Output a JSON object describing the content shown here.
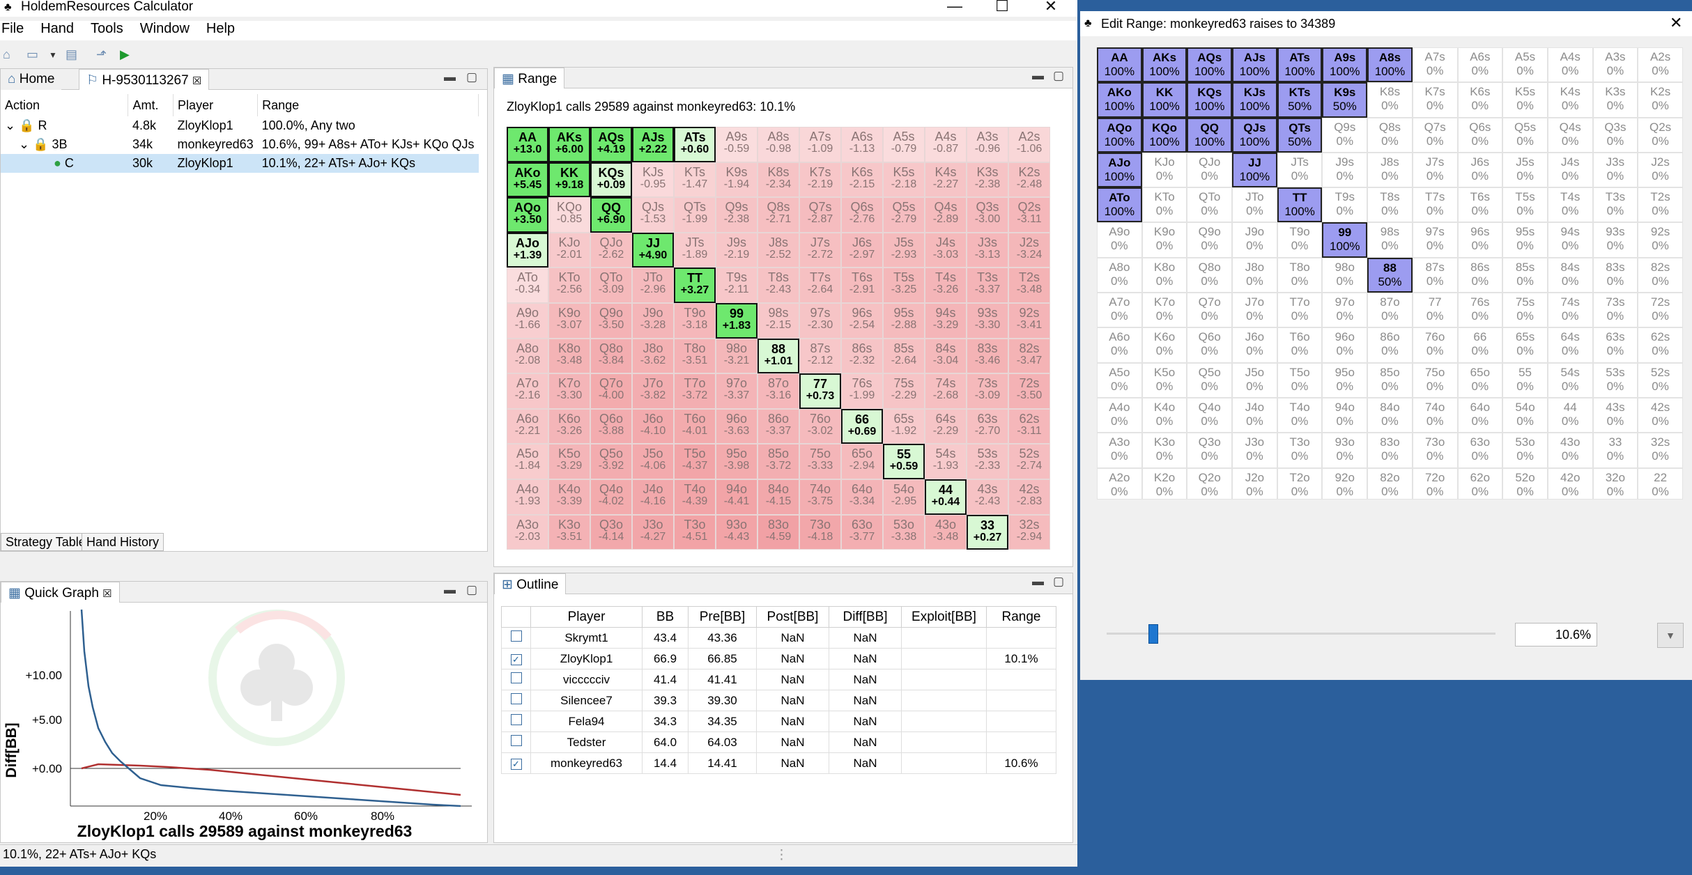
{
  "app": {
    "title": "HoldemResources Calculator",
    "menu": [
      "File",
      "Hand",
      "Tools",
      "Window",
      "Help"
    ],
    "minimize": "—",
    "maximize": "☐",
    "close": "✕"
  },
  "tabs": {
    "home": "Home",
    "hand": "H-9530113267"
  },
  "action_table": {
    "headers": [
      "Action",
      "Amt.",
      "Player",
      "Range"
    ],
    "rows": [
      {
        "action": "R",
        "amt": "4.8k",
        "player": "ZloyKlop1",
        "range": "100.0%, Any two"
      },
      {
        "action": "3B",
        "amt": "34k",
        "player": "monkeyred63",
        "range": "10.6%, 99+ A8s+ ATo+ KJs+ KQo QJs"
      },
      {
        "action": "C",
        "amt": "30k",
        "player": "ZloyKlop1",
        "range": "10.1%, 22+ ATs+ AJo+ KQs"
      }
    ]
  },
  "bottom_tabs": [
    "Strategy Table",
    "Hand History"
  ],
  "quick_graph": {
    "tab": "Quick Graph",
    "ylabel": "Diff[BB]",
    "yticks": [
      "+10.00",
      "+5.00",
      "+0.00"
    ],
    "xticks": [
      "20%",
      "40%",
      "60%",
      "80%"
    ],
    "caption": "ZloyKlop1 calls 29589 against monkeyred63"
  },
  "range_panel": {
    "tab": "Range",
    "subtitle": "ZloyKlop1 calls 29589 against monkeyred63: 10.1%",
    "grid": [
      [
        "AA|+13.0|1",
        "AKs|+6.00|1",
        "AQs|+4.19|1",
        "AJs|+2.22|1",
        "ATs|+0.60|1",
        "A9s|-0.59|0",
        "A8s|-0.98|0",
        "A7s|-1.09|0",
        "A6s|-1.13|0",
        "A5s|-0.79|0",
        "A4s|-0.87|0",
        "A3s|-0.96|0",
        "A2s|-1.06|0"
      ],
      [
        "AKo|+5.45|1",
        "KK|+9.18|1",
        "KQs|+0.09|1",
        "KJs|-0.95|0",
        "KTs|-1.47|0",
        "K9s|-1.94|0",
        "K8s|-2.34|0",
        "K7s|-2.19|0",
        "K6s|-2.15|0",
        "K5s|-2.18|0",
        "K4s|-2.27|0",
        "K3s|-2.38|0",
        "K2s|-2.48|0"
      ],
      [
        "AQo|+3.50|1",
        "KQo|-0.85|0",
        "QQ|+6.90|1",
        "QJs|-1.53|0",
        "QTs|-1.99|0",
        "Q9s|-2.38|0",
        "Q8s|-2.71|0",
        "Q7s|-2.87|0",
        "Q6s|-2.76|0",
        "Q5s|-2.79|0",
        "Q4s|-2.89|0",
        "Q3s|-3.00|0",
        "Q2s|-3.11|0"
      ],
      [
        "AJo|+1.39|1",
        "KJo|-2.01|0",
        "QJo|-2.62|0",
        "JJ|+4.90|1",
        "JTs|-1.89|0",
        "J9s|-2.19|0",
        "J8s|-2.52|0",
        "J7s|-2.72|0",
        "J6s|-2.97|0",
        "J5s|-2.93|0",
        "J4s|-3.03|0",
        "J3s|-3.13|0",
        "J2s|-3.24|0"
      ],
      [
        "ATo|-0.34|0",
        "KTo|-2.56|0",
        "QTo|-3.09|0",
        "JTo|-2.96|0",
        "TT|+3.27|1",
        "T9s|-2.11|0",
        "T8s|-2.43|0",
        "T7s|-2.64|0",
        "T6s|-2.91|0",
        "T5s|-3.25|0",
        "T4s|-3.26|0",
        "T3s|-3.37|0",
        "T2s|-3.48|0"
      ],
      [
        "A9o|-1.66|0",
        "K9o|-3.07|0",
        "Q9o|-3.50|0",
        "J9o|-3.28|0",
        "T9o|-3.18|0",
        "99|+1.83|1",
        "98s|-2.15|0",
        "97s|-2.30|0",
        "96s|-2.54|0",
        "95s|-2.88|0",
        "94s|-3.29|0",
        "93s|-3.30|0",
        "92s|-3.41|0"
      ],
      [
        "A8o|-2.08|0",
        "K8o|-3.48|0",
        "Q8o|-3.84|0",
        "J8o|-3.62|0",
        "T8o|-3.51|0",
        "98o|-3.21|0",
        "88|+1.01|1",
        "87s|-2.12|0",
        "86s|-2.32|0",
        "85s|-2.64|0",
        "84s|-3.04|0",
        "83s|-3.46|0",
        "82s|-3.47|0"
      ],
      [
        "A7o|-2.16|0",
        "K7o|-3.30|0",
        "Q7o|-4.00|0",
        "J7o|-3.82|0",
        "T7o|-3.72|0",
        "97o|-3.37|0",
        "87o|-3.16|0",
        "77|+0.73|1",
        "76s|-1.99|0",
        "75s|-2.29|0",
        "74s|-2.68|0",
        "73s|-3.09|0",
        "72s|-3.50|0"
      ],
      [
        "A6o|-2.21|0",
        "K6o|-3.26|0",
        "Q6o|-3.88|0",
        "J6o|-4.10|0",
        "T6o|-4.01|0",
        "96o|-3.63|0",
        "86o|-3.37|0",
        "76o|-3.02|0",
        "66|+0.69|1",
        "65s|-1.92|0",
        "64s|-2.29|0",
        "63s|-2.70|0",
        "62s|-3.11|0"
      ],
      [
        "A5o|-1.84|0",
        "K5o|-3.29|0",
        "Q5o|-3.92|0",
        "J5o|-4.06|0",
        "T5o|-4.37|0",
        "95o|-3.98|0",
        "85o|-3.72|0",
        "75o|-3.33|0",
        "65o|-2.94|0",
        "55|+0.59|1",
        "54s|-1.93|0",
        "53s|-2.33|0",
        "52s|-2.74|0"
      ],
      [
        "A4o|-1.93|0",
        "K4o|-3.39|0",
        "Q4o|-4.02|0",
        "J4o|-4.16|0",
        "T4o|-4.39|0",
        "94o|-4.41|0",
        "84o|-4.15|0",
        "74o|-3.75|0",
        "64o|-3.34|0",
        "54o|-2.95|0",
        "44|+0.44|1",
        "43s|-2.43|0",
        "42s|-2.83|0"
      ],
      [
        "A3o|-2.03|0",
        "K3o|-3.51|0",
        "Q3o|-4.14|0",
        "J3o|-4.27|0",
        "T3o|-4.51|0",
        "93o|-4.43|0",
        "83o|-4.59|0",
        "73o|-4.18|0",
        "63o|-3.77|0",
        "53o|-3.38|0",
        "43o|-3.48|0",
        "33|+0.27|1",
        "32s|-2.94|0"
      ]
    ]
  },
  "outline": {
    "tab": "Outline",
    "headers": [
      "",
      "Player",
      "BB",
      "Pre[BB]",
      "Post[BB]",
      "Diff[BB]",
      "Exploit[BB]",
      "Range"
    ],
    "rows": [
      {
        "checked": false,
        "player": "Skrymt1",
        "bb": "43.4",
        "pre": "43.36",
        "post": "NaN",
        "diff": "NaN",
        "exploit": "",
        "range": ""
      },
      {
        "checked": true,
        "player": "ZloyKlop1",
        "bb": "66.9",
        "pre": "66.85",
        "post": "NaN",
        "diff": "NaN",
        "exploit": "",
        "range": "10.1%"
      },
      {
        "checked": false,
        "player": "viccccciv",
        "bb": "41.4",
        "pre": "41.41",
        "post": "NaN",
        "diff": "NaN",
        "exploit": "",
        "range": ""
      },
      {
        "checked": false,
        "player": "Silencee7",
        "bb": "39.3",
        "pre": "39.30",
        "post": "NaN",
        "diff": "NaN",
        "exploit": "",
        "range": ""
      },
      {
        "checked": false,
        "player": "Fela94",
        "bb": "34.3",
        "pre": "34.35",
        "post": "NaN",
        "diff": "NaN",
        "exploit": "",
        "range": ""
      },
      {
        "checked": false,
        "player": "Tedster",
        "bb": "64.0",
        "pre": "64.03",
        "post": "NaN",
        "diff": "NaN",
        "exploit": "",
        "range": ""
      },
      {
        "checked": true,
        "player": "monkeyred63",
        "bb": "14.4",
        "pre": "14.41",
        "post": "NaN",
        "diff": "NaN",
        "exploit": "",
        "range": "10.6%"
      }
    ]
  },
  "edit_range": {
    "title": "Edit Range: monkeyred63 raises to 34389",
    "slider_value": "10.6%",
    "slider_fraction": 0.12,
    "grid": [
      [
        "AA|100%|1",
        "AKs|100%|1",
        "AQs|100%|1",
        "AJs|100%|1",
        "ATs|100%|1",
        "A9s|100%|1",
        "A8s|100%|1",
        "A7s|0%|0",
        "A6s|0%|0",
        "A5s|0%|0",
        "A4s|0%|0",
        "A3s|0%|0",
        "A2s|0%|0"
      ],
      [
        "AKo|100%|1",
        "KK|100%|1",
        "KQs|100%|1",
        "KJs|100%|1",
        "KTs|50%|1",
        "K9s|50%|1",
        "K8s|0%|0",
        "K7s|0%|0",
        "K6s|0%|0",
        "K5s|0%|0",
        "K4s|0%|0",
        "K3s|0%|0",
        "K2s|0%|0"
      ],
      [
        "AQo|100%|1",
        "KQo|100%|1",
        "QQ|100%|1",
        "QJs|100%|1",
        "QTs|50%|1",
        "Q9s|0%|0",
        "Q8s|0%|0",
        "Q7s|0%|0",
        "Q6s|0%|0",
        "Q5s|0%|0",
        "Q4s|0%|0",
        "Q3s|0%|0",
        "Q2s|0%|0"
      ],
      [
        "AJo|100%|1",
        "KJo|0%|0",
        "QJo|0%|0",
        "JJ|100%|1",
        "JTs|0%|0",
        "J9s|0%|0",
        "J8s|0%|0",
        "J7s|0%|0",
        "J6s|0%|0",
        "J5s|0%|0",
        "J4s|0%|0",
        "J3s|0%|0",
        "J2s|0%|0"
      ],
      [
        "ATo|100%|1",
        "KTo|0%|0",
        "QTo|0%|0",
        "JTo|0%|0",
        "TT|100%|1",
        "T9s|0%|0",
        "T8s|0%|0",
        "T7s|0%|0",
        "T6s|0%|0",
        "T5s|0%|0",
        "T4s|0%|0",
        "T3s|0%|0",
        "T2s|0%|0"
      ],
      [
        "A9o|0%|0",
        "K9o|0%|0",
        "Q9o|0%|0",
        "J9o|0%|0",
        "T9o|0%|0",
        "99|100%|1",
        "98s|0%|0",
        "97s|0%|0",
        "96s|0%|0",
        "95s|0%|0",
        "94s|0%|0",
        "93s|0%|0",
        "92s|0%|0"
      ],
      [
        "A8o|0%|0",
        "K8o|0%|0",
        "Q8o|0%|0",
        "J8o|0%|0",
        "T8o|0%|0",
        "98o|0%|0",
        "88|50%|1",
        "87s|0%|0",
        "86s|0%|0",
        "85s|0%|0",
        "84s|0%|0",
        "83s|0%|0",
        "82s|0%|0"
      ],
      [
        "A7o|0%|0",
        "K7o|0%|0",
        "Q7o|0%|0",
        "J7o|0%|0",
        "T7o|0%|0",
        "97o|0%|0",
        "87o|0%|0",
        "77|0%|0",
        "76s|0%|0",
        "75s|0%|0",
        "74s|0%|0",
        "73s|0%|0",
        "72s|0%|0"
      ],
      [
        "A6o|0%|0",
        "K6o|0%|0",
        "Q6o|0%|0",
        "J6o|0%|0",
        "T6o|0%|0",
        "96o|0%|0",
        "86o|0%|0",
        "76o|0%|0",
        "66|0%|0",
        "65s|0%|0",
        "64s|0%|0",
        "63s|0%|0",
        "62s|0%|0"
      ],
      [
        "A5o|0%|0",
        "K5o|0%|0",
        "Q5o|0%|0",
        "J5o|0%|0",
        "T5o|0%|0",
        "95o|0%|0",
        "85o|0%|0",
        "75o|0%|0",
        "65o|0%|0",
        "55|0%|0",
        "54s|0%|0",
        "53s|0%|0",
        "52s|0%|0"
      ],
      [
        "A4o|0%|0",
        "K4o|0%|0",
        "Q4o|0%|0",
        "J4o|0%|0",
        "T4o|0%|0",
        "94o|0%|0",
        "84o|0%|0",
        "74o|0%|0",
        "64o|0%|0",
        "54o|0%|0",
        "44|0%|0",
        "43s|0%|0",
        "42s|0%|0"
      ],
      [
        "A3o|0%|0",
        "K3o|0%|0",
        "Q3o|0%|0",
        "J3o|0%|0",
        "T3o|0%|0",
        "93o|0%|0",
        "83o|0%|0",
        "73o|0%|0",
        "63o|0%|0",
        "53o|0%|0",
        "43o|0%|0",
        "33|0%|0",
        "32s|0%|0"
      ],
      [
        "A2o|0%|0",
        "K2o|0%|0",
        "Q2o|0%|0",
        "J2o|0%|0",
        "T2o|0%|0",
        "92o|0%|0",
        "82o|0%|0",
        "72o|0%|0",
        "62o|0%|0",
        "52o|0%|0",
        "42o|0%|0",
        "32o|0%|0",
        "22|0%|0"
      ]
    ]
  },
  "status": "10.1%, 22+ ATs+ AJo+ KQs",
  "colors": {
    "green_on": "#6ee86e",
    "pink_base": "#f5c0c0",
    "purple_on": "#9c9cf0",
    "line_blue": "#2f6090",
    "line_red": "#b03030"
  }
}
